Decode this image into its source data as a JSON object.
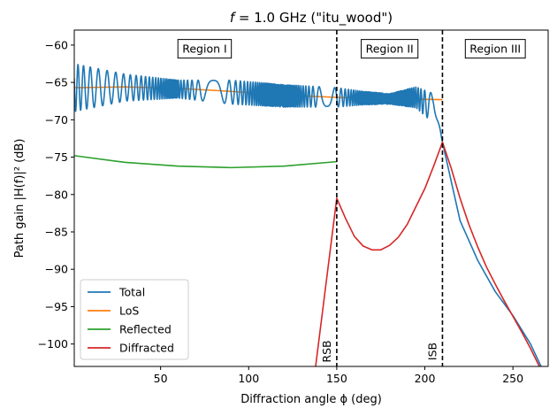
{
  "chart_data": {
    "type": "line",
    "title": "f = 1.0 GHz (\"itu_wood\")",
    "title_prefix": "f",
    "title_rest": " = 1.0 GHz (\"itu_wood\")",
    "xlabel": "Diffraction angle ϕ (deg)",
    "ylabel": "Path gain |H(f)|² (dB)",
    "xlim": [
      1,
      270
    ],
    "ylim": [
      -103,
      -58
    ],
    "xticks": [
      50,
      100,
      150,
      200,
      250
    ],
    "yticks": [
      -60,
      -65,
      -70,
      -75,
      -80,
      -85,
      -90,
      -95,
      -100
    ],
    "grid": false,
    "legend_position": "lower-left",
    "regions": [
      {
        "label": "Region I",
        "x": 75,
        "y": -60.5
      },
      {
        "label": "Region II",
        "x": 180,
        "y": -60.5
      },
      {
        "label": "Region III",
        "x": 240,
        "y": -60.5
      }
    ],
    "boundaries": [
      {
        "label": "RSB",
        "x": 150
      },
      {
        "label": "ISB",
        "x": 210
      }
    ],
    "series": [
      {
        "name": "Total",
        "color": "#1f77b4",
        "envelope": {
          "x": [
            1,
            30,
            60,
            90,
            120,
            150,
            165,
            180,
            195,
            205,
            210
          ],
          "center": [
            -65.7,
            -65.7,
            -65.9,
            -66.3,
            -66.8,
            -67.0,
            -67.1,
            -67.2,
            -67.0,
            -68.5,
            -73.0
          ],
          "amplitude": [
            3.2,
            1.8,
            1.2,
            1.6,
            1.5,
            1.3,
            0.9,
            0.7,
            1.4,
            2.0,
            0.0
          ]
        },
        "x": [
          210,
          220,
          230,
          240,
          250,
          260,
          265,
          268
        ],
        "y": [
          -78.5,
          -83.5,
          -88.8,
          -93.0,
          -96.2,
          -100.0,
          -102.5,
          -104.0
        ]
      },
      {
        "name": "LoS",
        "color": "#ff7f0e",
        "x": [
          1,
          30,
          60,
          90,
          120,
          150,
          180,
          210
        ],
        "y": [
          -65.7,
          -65.6,
          -65.8,
          -66.2,
          -66.7,
          -67.0,
          -67.2,
          -67.3
        ]
      },
      {
        "name": "Reflected",
        "color": "#2ca02c",
        "x": [
          1,
          30,
          60,
          90,
          120,
          150
        ],
        "y": [
          -74.8,
          -75.7,
          -76.2,
          -76.4,
          -76.2,
          -75.6
        ]
      },
      {
        "name": "Diffracted",
        "color": "#d62728",
        "x": [
          138,
          142,
          146,
          150,
          155,
          160,
          165,
          170,
          175,
          180,
          185,
          190,
          195,
          200,
          205,
          210,
          215,
          220,
          225,
          230,
          235,
          240,
          245,
          250,
          255,
          260,
          265,
          268
        ],
        "y": [
          -103,
          -95.5,
          -88.0,
          -80.5,
          -83.2,
          -85.6,
          -86.9,
          -87.4,
          -87.4,
          -86.8,
          -85.7,
          -84.0,
          -81.6,
          -79.2,
          -76.2,
          -73.0,
          -76.5,
          -80.5,
          -84.0,
          -87.0,
          -89.7,
          -92.0,
          -94.2,
          -96.3,
          -98.4,
          -100.6,
          -103.0,
          -104.0
        ]
      }
    ]
  }
}
